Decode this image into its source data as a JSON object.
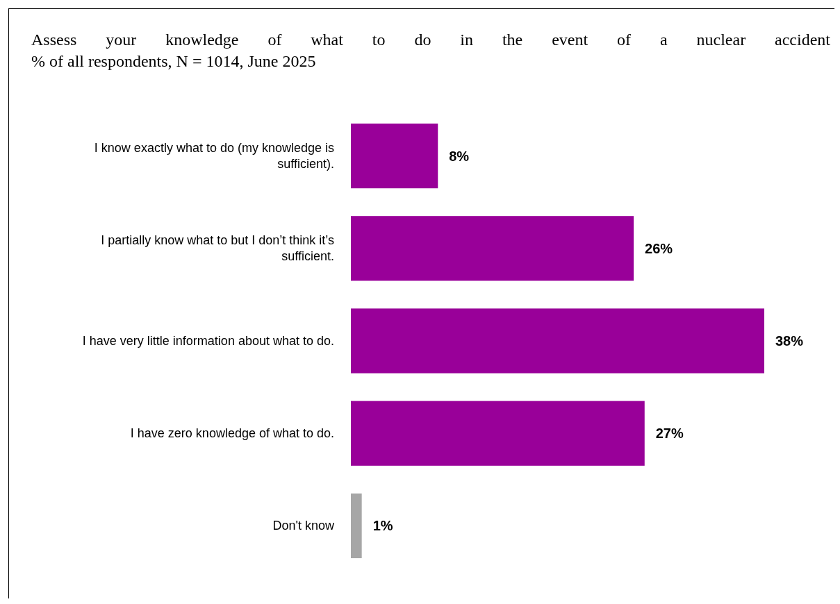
{
  "chart_data": {
    "type": "bar",
    "orientation": "horizontal",
    "title": "Assess your knowledge of what to do in the event of a nuclear accident",
    "subtitle": "% of all respondents, N = 1014, June 2025",
    "categories": [
      "I know exactly what to do (my knowledge is sufficient).",
      "I partially know what to but I don’t think it’s sufficient.",
      "I have very little information about what to do.",
      "I have zero knowledge of what to do.",
      "Don't know"
    ],
    "values": [
      8,
      26,
      38,
      27,
      1
    ],
    "value_labels": [
      "8%",
      "26%",
      "38%",
      "27%",
      "1%"
    ],
    "colors": [
      "#990099",
      "#990099",
      "#990099",
      "#990099",
      "#a6a6a6"
    ],
    "data_labels": false
  }
}
